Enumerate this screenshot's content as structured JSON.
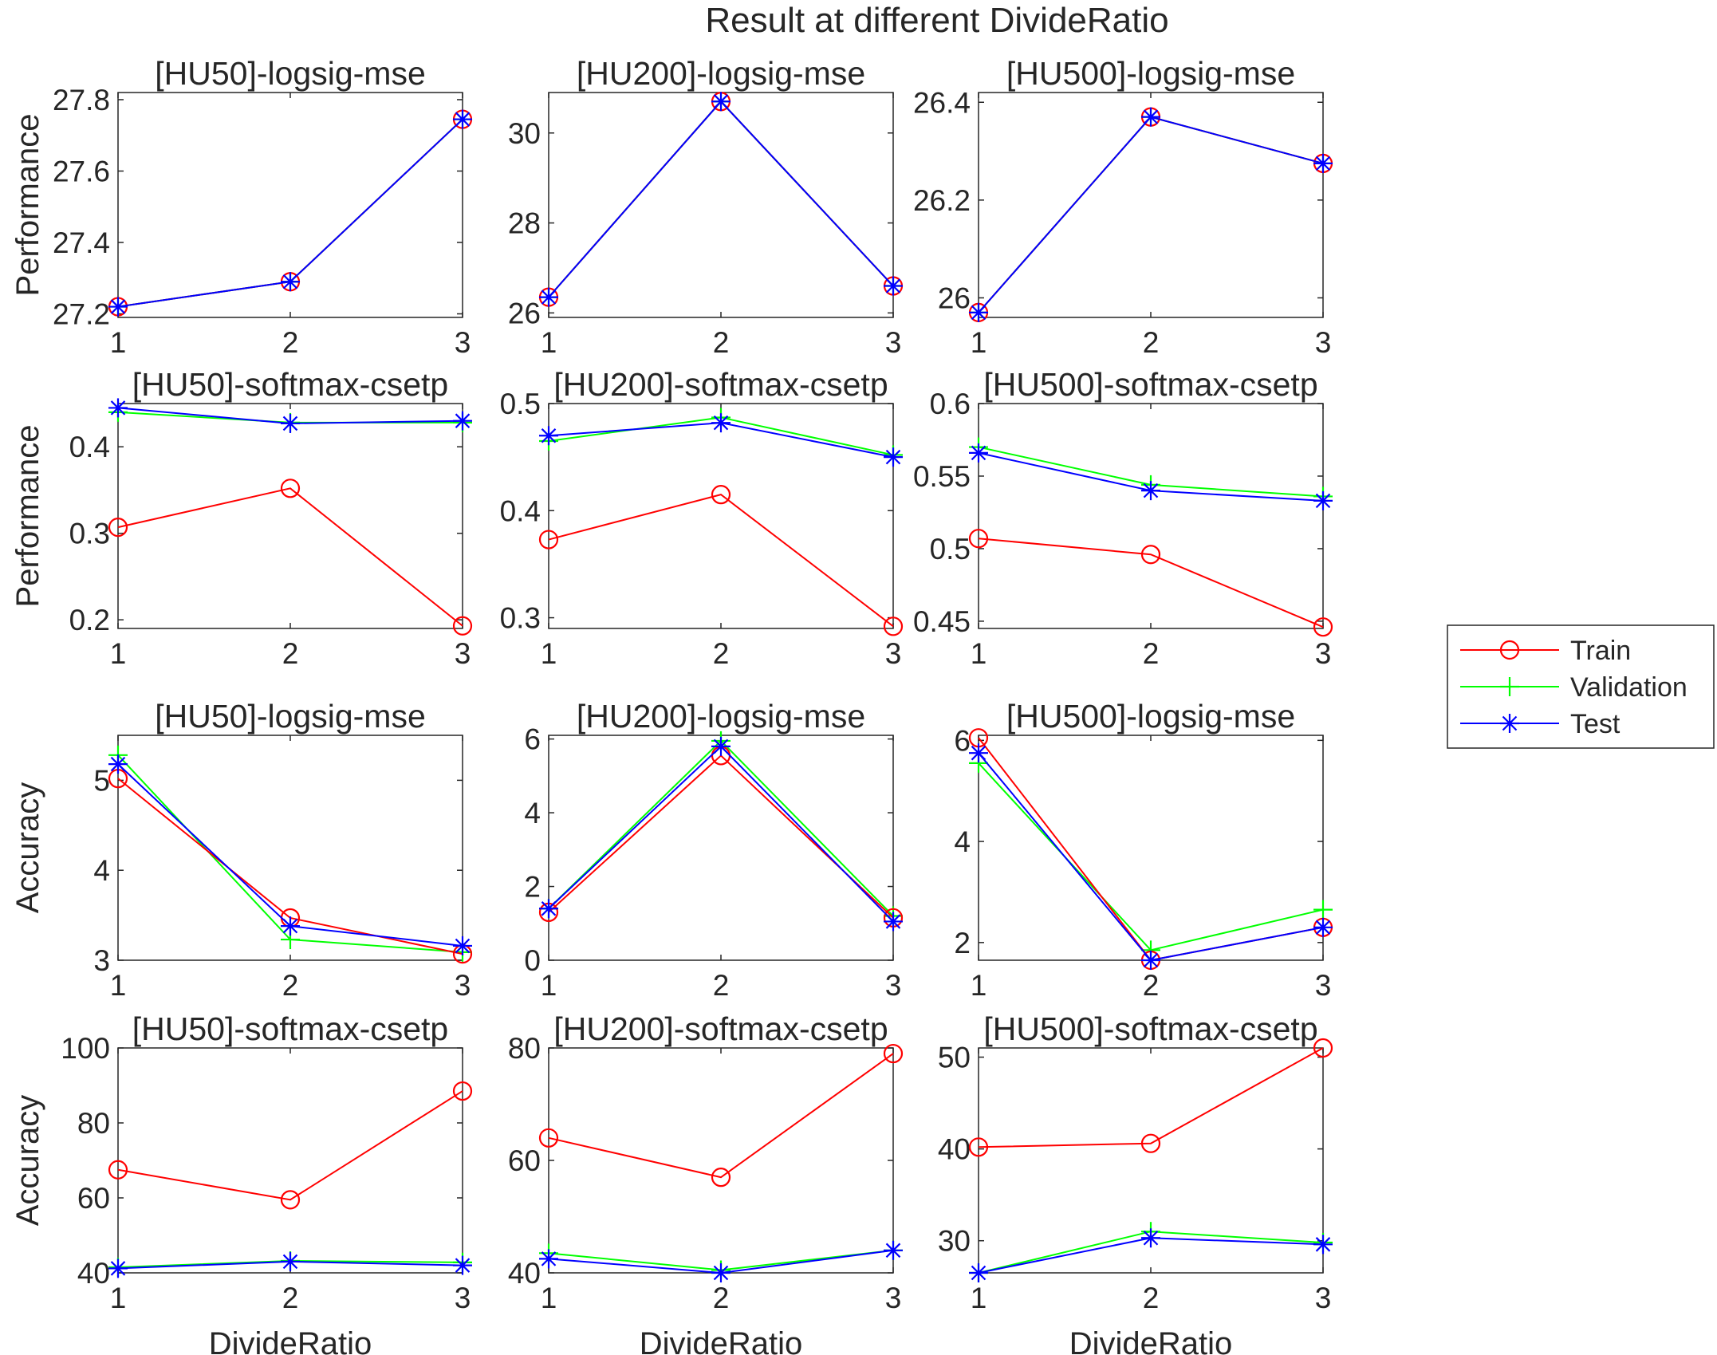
{
  "figure": {
    "suptitle": "Result at different DivideRatio"
  },
  "colors": {
    "train": "#ff0000",
    "validation": "#00ff00",
    "test": "#0000ff",
    "axis": "#262626"
  },
  "legend": {
    "placement": "right",
    "entries": [
      {
        "name": "Train",
        "marker": "circle",
        "color": "#ff0000"
      },
      {
        "name": "Validation",
        "marker": "plus",
        "color": "#00ff00"
      },
      {
        "name": "Test",
        "marker": "asterisk",
        "color": "#0000ff"
      }
    ]
  },
  "chart_data": [
    {
      "type": "line",
      "title": "[HU50]-logsig-mse",
      "ylabel": "Performance",
      "xlabel": "",
      "x": [
        1,
        2,
        3
      ],
      "xlim": [
        1,
        3
      ],
      "xticks": [
        "1",
        "2",
        "3"
      ],
      "ylim": [
        27.19,
        27.82
      ],
      "yticks": [
        27.2,
        27.4,
        27.6,
        27.8
      ],
      "ytick_labels": [
        "27.2",
        "27.4",
        "27.6",
        "27.8"
      ],
      "series": [
        {
          "name": "Train",
          "values": [
            27.22,
            27.29,
            27.745
          ]
        },
        {
          "name": "Validation",
          "values": [
            27.22,
            27.29,
            27.745
          ]
        },
        {
          "name": "Test",
          "values": [
            27.22,
            27.29,
            27.745
          ]
        }
      ]
    },
    {
      "type": "line",
      "title": "[HU200]-logsig-mse",
      "ylabel": "",
      "xlabel": "",
      "x": [
        1,
        2,
        3
      ],
      "xlim": [
        1,
        3
      ],
      "xticks": [
        "1",
        "2",
        "3"
      ],
      "ylim": [
        25.9,
        30.9
      ],
      "yticks": [
        26,
        28,
        30
      ],
      "ytick_labels": [
        "26",
        "28",
        "30"
      ],
      "series": [
        {
          "name": "Train",
          "values": [
            26.35,
            30.7,
            26.6
          ]
        },
        {
          "name": "Validation",
          "values": [
            26.35,
            30.7,
            26.6
          ]
        },
        {
          "name": "Test",
          "values": [
            26.35,
            30.7,
            26.6
          ]
        }
      ]
    },
    {
      "type": "line",
      "title": "[HU500]-logsig-mse",
      "ylabel": "",
      "xlabel": "",
      "x": [
        1,
        2,
        3
      ],
      "xlim": [
        1,
        3
      ],
      "xticks": [
        "1",
        "2",
        "3"
      ],
      "ylim": [
        25.96,
        26.42
      ],
      "yticks": [
        26,
        26.2,
        26.4
      ],
      "ytick_labels": [
        "26",
        "26.2",
        "26.4"
      ],
      "series": [
        {
          "name": "Train",
          "values": [
            25.97,
            26.37,
            26.275
          ]
        },
        {
          "name": "Validation",
          "values": [
            25.97,
            26.37,
            26.275
          ]
        },
        {
          "name": "Test",
          "values": [
            25.97,
            26.37,
            26.275
          ]
        }
      ]
    },
    {
      "type": "line",
      "title": "[HU50]-softmax-csetp",
      "ylabel": "Performance",
      "xlabel": "",
      "x": [
        1,
        2,
        3
      ],
      "xlim": [
        1,
        3
      ],
      "xticks": [
        "1",
        "2",
        "3"
      ],
      "ylim": [
        0.19,
        0.45
      ],
      "yticks": [
        0.2,
        0.3,
        0.4
      ],
      "ytick_labels": [
        "0.2",
        "0.3",
        "0.4"
      ],
      "series": [
        {
          "name": "Train",
          "values": [
            0.307,
            0.352,
            0.193
          ]
        },
        {
          "name": "Validation",
          "values": [
            0.44,
            0.428,
            0.428
          ]
        },
        {
          "name": "Test",
          "values": [
            0.445,
            0.427,
            0.43
          ]
        }
      ]
    },
    {
      "type": "line",
      "title": "[HU200]-softmax-csetp",
      "ylabel": "",
      "xlabel": "",
      "x": [
        1,
        2,
        3
      ],
      "xlim": [
        1,
        3
      ],
      "xticks": [
        "1",
        "2",
        "3"
      ],
      "ylim": [
        0.29,
        0.5
      ],
      "yticks": [
        0.3,
        0.4,
        0.5
      ],
      "ytick_labels": [
        "0.3",
        "0.4",
        "0.5"
      ],
      "series": [
        {
          "name": "Train",
          "values": [
            0.373,
            0.415,
            0.292
          ]
        },
        {
          "name": "Validation",
          "values": [
            0.465,
            0.487,
            0.452
          ]
        },
        {
          "name": "Test",
          "values": [
            0.47,
            0.482,
            0.45
          ]
        }
      ]
    },
    {
      "type": "line",
      "title": "[HU500]-softmax-csetp",
      "ylabel": "",
      "xlabel": "",
      "x": [
        1,
        2,
        3
      ],
      "xlim": [
        1,
        3
      ],
      "xticks": [
        "1",
        "2",
        "3"
      ],
      "ylim": [
        0.445,
        0.6
      ],
      "yticks": [
        0.45,
        0.5,
        0.55,
        0.6
      ],
      "ytick_labels": [
        "0.45",
        "0.5",
        "0.55",
        "0.6"
      ],
      "series": [
        {
          "name": "Train",
          "values": [
            0.507,
            0.496,
            0.446
          ]
        },
        {
          "name": "Validation",
          "values": [
            0.57,
            0.544,
            0.536
          ]
        },
        {
          "name": "Test",
          "values": [
            0.566,
            0.54,
            0.533
          ]
        }
      ]
    },
    {
      "type": "line",
      "title": "[HU50]-logsig-mse",
      "ylabel": "Accuracy",
      "xlabel": "",
      "x": [
        1,
        2,
        3
      ],
      "xlim": [
        1,
        3
      ],
      "xticks": [
        "1",
        "2",
        "3"
      ],
      "ylim": [
        3,
        5.5
      ],
      "yticks": [
        3,
        4,
        5
      ],
      "ytick_labels": [
        "3",
        "4",
        "5"
      ],
      "series": [
        {
          "name": "Train",
          "values": [
            5.02,
            3.47,
            3.07
          ]
        },
        {
          "name": "Validation",
          "values": [
            5.28,
            3.23,
            3.09
          ]
        },
        {
          "name": "Test",
          "values": [
            5.18,
            3.38,
            3.16
          ]
        }
      ]
    },
    {
      "type": "line",
      "title": "[HU200]-logsig-mse",
      "ylabel": "",
      "xlabel": "",
      "x": [
        1,
        2,
        3
      ],
      "xlim": [
        1,
        3
      ],
      "xticks": [
        "1",
        "2",
        "3"
      ],
      "ylim": [
        0,
        6.1
      ],
      "yticks": [
        0,
        2,
        4,
        6
      ],
      "ytick_labels": [
        "0",
        "2",
        "4",
        "6"
      ],
      "series": [
        {
          "name": "Train",
          "values": [
            1.3,
            5.55,
            1.15
          ]
        },
        {
          "name": "Validation",
          "values": [
            1.4,
            5.95,
            1.2
          ]
        },
        {
          "name": "Test",
          "values": [
            1.4,
            5.8,
            1.05
          ]
        }
      ]
    },
    {
      "type": "line",
      "title": "[HU500]-logsig-mse",
      "ylabel": "",
      "xlabel": "",
      "x": [
        1,
        2,
        3
      ],
      "xlim": [
        1,
        3
      ],
      "xticks": [
        "1",
        "2",
        "3"
      ],
      "ylim": [
        1.65,
        6.1
      ],
      "yticks": [
        2,
        4,
        6
      ],
      "ytick_labels": [
        "2",
        "4",
        "6"
      ],
      "series": [
        {
          "name": "Train",
          "values": [
            6.05,
            1.65,
            2.3
          ]
        },
        {
          "name": "Validation",
          "values": [
            5.55,
            1.85,
            2.65
          ]
        },
        {
          "name": "Test",
          "values": [
            5.75,
            1.65,
            2.3
          ]
        }
      ]
    },
    {
      "type": "line",
      "title": "[HU50]-softmax-csetp",
      "ylabel": "Accuracy",
      "xlabel": "DivideRatio",
      "x": [
        1,
        2,
        3
      ],
      "xlim": [
        1,
        3
      ],
      "xticks": [
        "1",
        "2",
        "3"
      ],
      "ylim": [
        40,
        100
      ],
      "yticks": [
        40,
        60,
        80,
        100
      ],
      "ytick_labels": [
        "40",
        "60",
        "80",
        "100"
      ],
      "series": [
        {
          "name": "Train",
          "values": [
            67.5,
            59.5,
            88.5
          ]
        },
        {
          "name": "Validation",
          "values": [
            41.5,
            43.2,
            42.8
          ]
        },
        {
          "name": "Test",
          "values": [
            41.2,
            43.0,
            42.0
          ]
        }
      ]
    },
    {
      "type": "line",
      "title": "[HU200]-softmax-csetp",
      "ylabel": "",
      "xlabel": "DivideRatio",
      "x": [
        1,
        2,
        3
      ],
      "xlim": [
        1,
        3
      ],
      "xticks": [
        "1",
        "2",
        "3"
      ],
      "ylim": [
        40,
        80
      ],
      "yticks": [
        40,
        60,
        80
      ],
      "ytick_labels": [
        "40",
        "60",
        "80"
      ],
      "series": [
        {
          "name": "Train",
          "values": [
            64,
            57,
            79
          ]
        },
        {
          "name": "Validation",
          "values": [
            43.5,
            40.5,
            44
          ]
        },
        {
          "name": "Test",
          "values": [
            42.5,
            40,
            44
          ]
        }
      ]
    },
    {
      "type": "line",
      "title": "[HU500]-softmax-csetp",
      "ylabel": "",
      "xlabel": "DivideRatio",
      "x": [
        1,
        2,
        3
      ],
      "xlim": [
        1,
        3
      ],
      "xticks": [
        "1",
        "2",
        "3"
      ],
      "ylim": [
        26.5,
        51
      ],
      "yticks": [
        30,
        40,
        50
      ],
      "ytick_labels": [
        "30",
        "40",
        "50"
      ],
      "series": [
        {
          "name": "Train",
          "values": [
            40.2,
            40.6,
            51
          ]
        },
        {
          "name": "Validation",
          "values": [
            26.5,
            31,
            29.8
          ]
        },
        {
          "name": "Test",
          "values": [
            26.5,
            30.3,
            29.6
          ]
        }
      ]
    }
  ]
}
